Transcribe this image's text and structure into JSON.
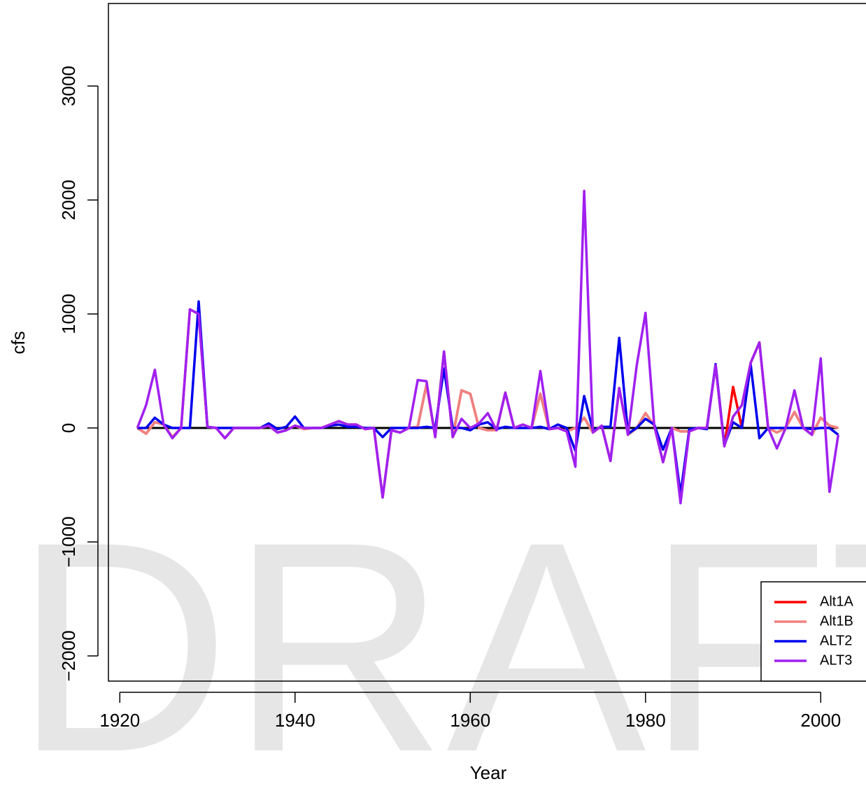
{
  "chart_data": {
    "type": "line",
    "watermark": "DRAFT",
    "xlabel": "Year",
    "ylabel": "cfs",
    "x": [
      1922,
      1923,
      1924,
      1925,
      1926,
      1927,
      1928,
      1929,
      1930,
      1931,
      1932,
      1933,
      1934,
      1935,
      1936,
      1937,
      1938,
      1939,
      1940,
      1941,
      1942,
      1943,
      1944,
      1945,
      1946,
      1947,
      1948,
      1949,
      1950,
      1951,
      1952,
      1953,
      1954,
      1955,
      1956,
      1957,
      1958,
      1959,
      1960,
      1961,
      1962,
      1963,
      1964,
      1965,
      1966,
      1967,
      1968,
      1969,
      1970,
      1971,
      1972,
      1973,
      1974,
      1975,
      1976,
      1977,
      1978,
      1979,
      1980,
      1981,
      1982,
      1983,
      1984,
      1985,
      1986,
      1987,
      1988,
      1989,
      1990,
      1991,
      1992,
      1993,
      1994,
      1995,
      1996,
      1997,
      1998,
      1999,
      2000,
      2001,
      2002
    ],
    "baseline": {
      "value": 0,
      "color": "#000000"
    },
    "series": [
      {
        "name": "Alt1A",
        "color": "#ff0000",
        "values": [
          0,
          -50,
          50,
          30,
          -80,
          0,
          1040,
          1000,
          10,
          0,
          -90,
          0,
          0,
          0,
          0,
          20,
          -40,
          -20,
          20,
          -10,
          0,
          0,
          30,
          60,
          30,
          30,
          -10,
          0,
          -610,
          -20,
          -40,
          0,
          10,
          380,
          -80,
          670,
          -80,
          330,
          300,
          0,
          -20,
          -20,
          310,
          0,
          30,
          0,
          300,
          -10,
          0,
          -30,
          0,
          90,
          -40,
          20,
          -290,
          350,
          -60,
          0,
          130,
          20,
          -300,
          0,
          -30,
          -30,
          0,
          0,
          550,
          -160,
          360,
          0,
          570,
          750,
          0,
          -40,
          0,
          140,
          0,
          -60,
          90,
          20,
          0
        ]
      },
      {
        "name": "Alt1B",
        "color": "#f08080",
        "values": [
          0,
          -50,
          50,
          30,
          -80,
          0,
          1040,
          1000,
          10,
          0,
          -90,
          0,
          0,
          0,
          0,
          20,
          -40,
          -20,
          20,
          -10,
          0,
          0,
          30,
          60,
          30,
          30,
          -10,
          0,
          -610,
          -20,
          -40,
          0,
          10,
          380,
          -80,
          670,
          -80,
          330,
          300,
          0,
          -20,
          -20,
          310,
          0,
          30,
          0,
          300,
          -10,
          0,
          -30,
          0,
          90,
          -40,
          20,
          -290,
          350,
          -60,
          0,
          130,
          20,
          -300,
          0,
          -30,
          -30,
          0,
          0,
          550,
          -160,
          100,
          200,
          570,
          750,
          0,
          -40,
          0,
          140,
          0,
          -60,
          90,
          20,
          0
        ]
      },
      {
        "name": "ALT2",
        "color": "#0000ee",
        "values": [
          0,
          0,
          90,
          30,
          0,
          0,
          0,
          1110,
          10,
          0,
          0,
          0,
          0,
          0,
          0,
          40,
          -10,
          10,
          100,
          0,
          0,
          0,
          20,
          30,
          10,
          10,
          0,
          0,
          -80,
          0,
          0,
          0,
          0,
          10,
          0,
          520,
          0,
          0,
          -20,
          30,
          50,
          -10,
          10,
          0,
          0,
          0,
          10,
          -10,
          30,
          0,
          -200,
          280,
          -20,
          10,
          10,
          790,
          -50,
          0,
          80,
          30,
          -190,
          0,
          -580,
          -10,
          0,
          -10,
          560,
          -150,
          50,
          0,
          560,
          -90,
          0,
          0,
          0,
          0,
          0,
          -10,
          0,
          0,
          -60
        ]
      },
      {
        "name": "ALT3",
        "color": "#a020f0",
        "values": [
          0,
          200,
          510,
          30,
          -90,
          0,
          1040,
          1000,
          10,
          0,
          -90,
          0,
          0,
          0,
          0,
          20,
          -40,
          -20,
          20,
          0,
          0,
          0,
          30,
          60,
          30,
          30,
          -10,
          0,
          -610,
          -20,
          -40,
          0,
          420,
          410,
          -80,
          670,
          -80,
          80,
          0,
          40,
          130,
          -20,
          310,
          0,
          30,
          0,
          500,
          -10,
          0,
          -30,
          -340,
          2080,
          -40,
          20,
          -290,
          350,
          -60,
          550,
          1010,
          20,
          -300,
          0,
          -660,
          -30,
          0,
          0,
          550,
          -160,
          100,
          200,
          570,
          750,
          0,
          -180,
          0,
          330,
          0,
          -60,
          610,
          -560,
          -60
        ]
      }
    ],
    "xlim": [
      1918.7,
      2005.2
    ],
    "xticks": [
      1920,
      1940,
      1960,
      1980,
      2000
    ],
    "ylim": [
      -2221,
      3724
    ],
    "yticks": [
      {
        "value": -2000,
        "label": "−2000"
      },
      {
        "value": -1000,
        "label": "−1000"
      },
      0,
      1000,
      2000,
      3000
    ],
    "legend": "bottom-right"
  }
}
